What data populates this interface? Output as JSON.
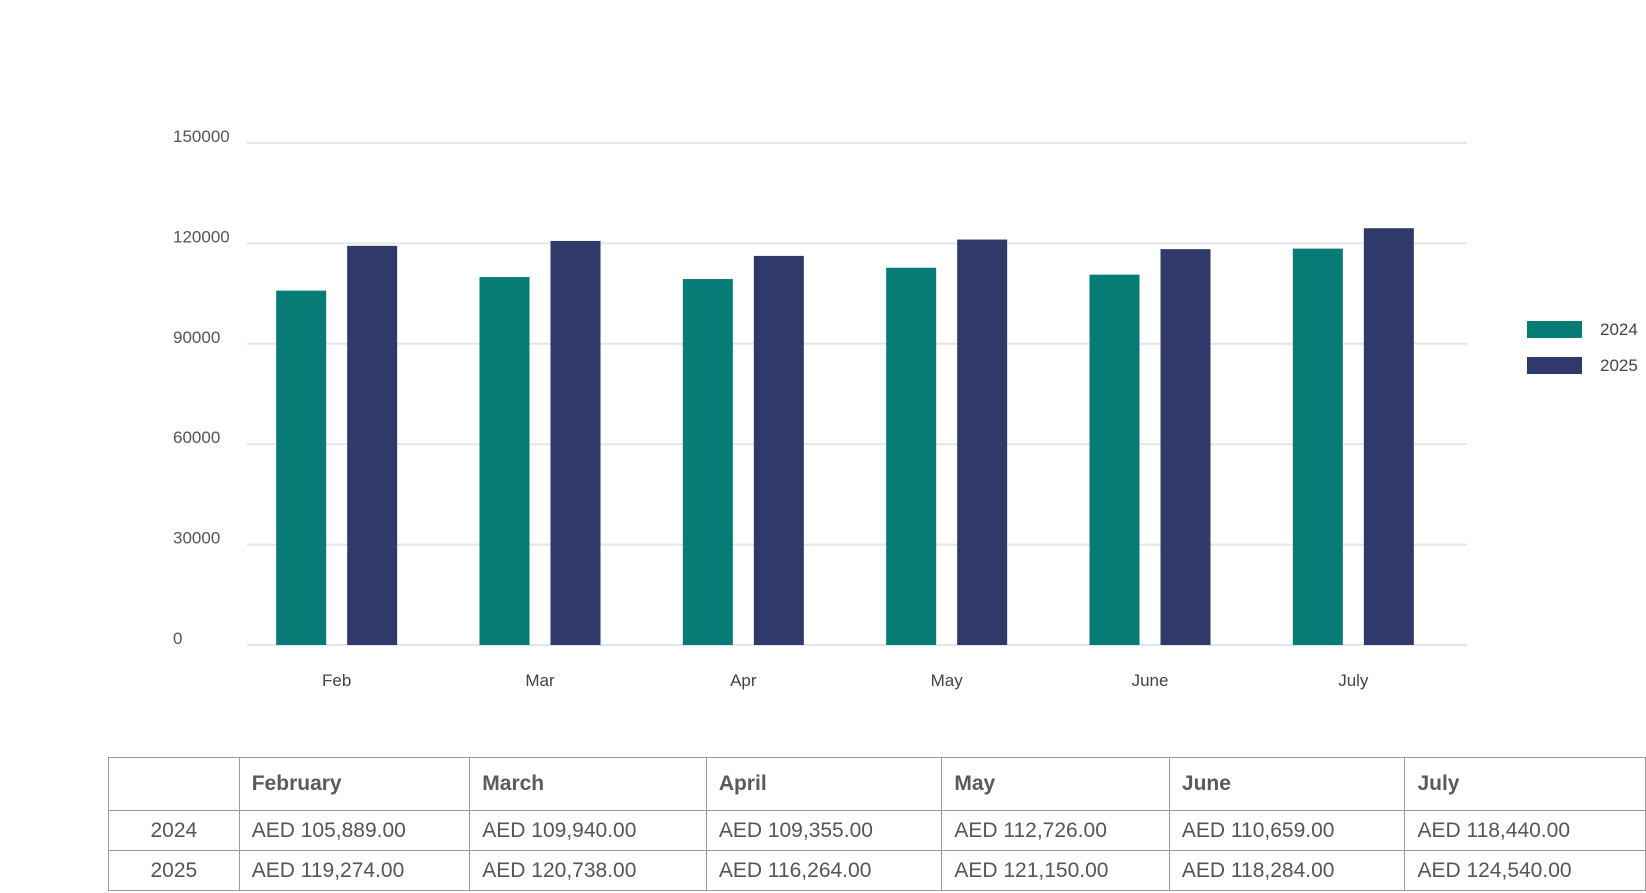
{
  "chart_data": {
    "type": "bar",
    "categories": [
      "Feb",
      "Mar",
      "Apr",
      "May",
      "June",
      "July"
    ],
    "series": [
      {
        "name": "2024",
        "color": "#077b76",
        "values": [
          105889,
          109940,
          109355,
          112726,
          110659,
          118440
        ]
      },
      {
        "name": "2025",
        "color": "#303a6a",
        "values": [
          119274,
          120738,
          116264,
          121150,
          118284,
          124540
        ]
      }
    ],
    "yticks": [
      "150000",
      "120000",
      "90000",
      "60000",
      "30000",
      "0"
    ],
    "ylim": [
      0,
      150000
    ],
    "grid": true,
    "legend_position": "right",
    "title": "",
    "xlabel": "",
    "ylabel": ""
  },
  "table": {
    "header": [
      "",
      "February",
      "March",
      "April",
      "May",
      "June",
      "July"
    ],
    "rows": [
      {
        "label": "2024",
        "cells": [
          "AED 105,889.00",
          "AED 109,940.00",
          "AED 109,355.00",
          "AED 112,726.00",
          "AED 110,659.00",
          "AED 118,440.00"
        ]
      },
      {
        "label": "2025",
        "cells": [
          "AED 119,274.00",
          "AED 120,738.00",
          "AED 116,264.00",
          "AED 121,150.00",
          "AED 118,284.00",
          "AED 124,540.00"
        ]
      }
    ]
  }
}
